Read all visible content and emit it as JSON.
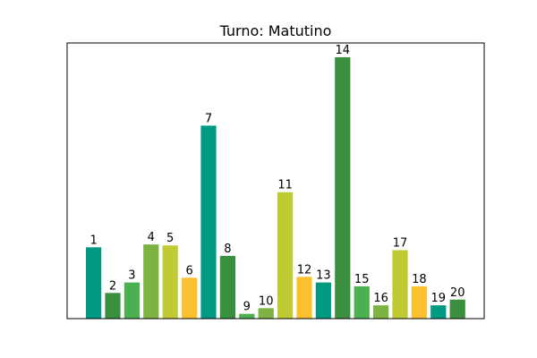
{
  "chart_data": {
    "type": "bar",
    "title": "Turno: Matutino",
    "xlabel": "",
    "ylabel": "",
    "categories": [
      "1",
      "2",
      "3",
      "4",
      "5",
      "6",
      "7",
      "8",
      "9",
      "10",
      "11",
      "12",
      "13",
      "14",
      "15",
      "16",
      "17",
      "18",
      "19",
      "20"
    ],
    "values": [
      7.5,
      2.7,
      3.8,
      7.8,
      7.7,
      4.3,
      20.3,
      6.6,
      0.5,
      1.1,
      13.3,
      4.4,
      3.8,
      27.5,
      3.4,
      1.4,
      7.2,
      3.4,
      1.4,
      2.0
    ],
    "data_labels": [
      "1",
      "2",
      "3",
      "4",
      "5",
      "6",
      "7",
      "8",
      "9",
      "10",
      "11",
      "12",
      "13",
      "14",
      "15",
      "16",
      "17",
      "18",
      "19",
      "20"
    ],
    "colors": [
      "#009a83",
      "#3a8f3e",
      "#4caf50",
      "#7cb342",
      "#c0ca33",
      "#fbc02d",
      "#009a83",
      "#3a8f3e",
      "#4caf50",
      "#7cb342",
      "#c0ca33",
      "#fbc02d",
      "#009a83",
      "#3a8f3e",
      "#4caf50",
      "#7cb342",
      "#c0ca33",
      "#fbc02d",
      "#009a83",
      "#3a8f3e"
    ],
    "ylim": [
      0,
      29
    ],
    "grid": false,
    "axis_ticks_visible": false
  }
}
